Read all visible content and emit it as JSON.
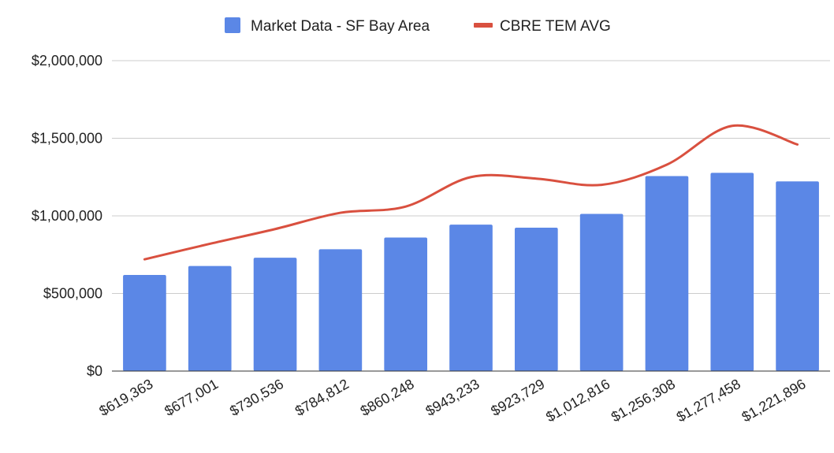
{
  "chart_data": {
    "type": "bar",
    "title": "",
    "xlabel": "",
    "ylabel": "",
    "ylim": [
      0,
      2000000
    ],
    "yticks": [
      0,
      500000,
      1000000,
      1500000,
      2000000
    ],
    "ytick_labels": [
      "$0",
      "$500,000",
      "$1,000,000",
      "$1,500,000",
      "$2,000,000"
    ],
    "grid": true,
    "legend_position": "top",
    "categories": [
      "$619,363",
      "$677,001",
      "$730,536",
      "$784,812",
      "$860,248",
      "$943,233",
      "$923,729",
      "$1,012,816",
      "$1,256,308",
      "$1,277,458",
      "$1,221,896"
    ],
    "series": [
      {
        "name": "Market Data - SF Bay Area",
        "kind": "bar",
        "color": "#5b87e6",
        "values": [
          619363,
          677001,
          730536,
          784812,
          860248,
          943233,
          923729,
          1012816,
          1256308,
          1277458,
          1221896
        ]
      },
      {
        "name": "CBRE TEM AVG",
        "kind": "line",
        "color": "#d9503f",
        "values": [
          720000,
          820000,
          915000,
          1020000,
          1060000,
          1250000,
          1240000,
          1200000,
          1330000,
          1580000,
          1460000
        ]
      }
    ]
  }
}
